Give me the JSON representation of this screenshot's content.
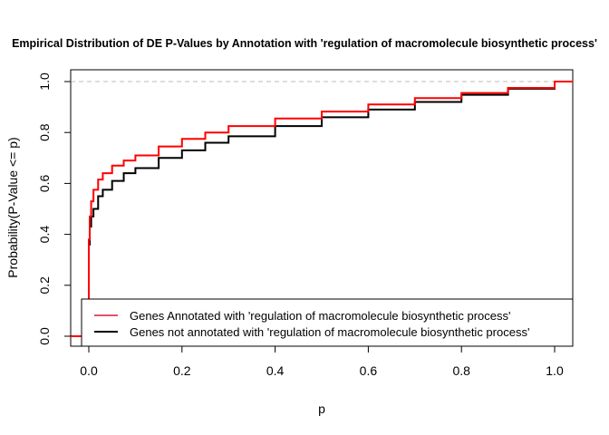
{
  "chart_data": {
    "type": "line",
    "title": "Empirical Distribution of DE P-Values by Annotation with 'regulation of macromolecule biosynthetic process'",
    "xlabel": "p",
    "ylabel": "Probability(P-Value <= p)",
    "xlim": [
      -0.04,
      1.04
    ],
    "ylim": [
      -0.04,
      1.04
    ],
    "xticks": [
      0.0,
      0.2,
      0.4,
      0.6,
      0.8,
      1.0
    ],
    "xtick_labels": [
      "0.0",
      "0.2",
      "0.4",
      "0.6",
      "0.8",
      "1.0"
    ],
    "yticks": [
      0.0,
      0.2,
      0.4,
      0.6,
      0.8,
      1.0
    ],
    "ytick_labels": [
      "0.0",
      "0.2",
      "0.4",
      "0.6",
      "0.8",
      "1.0"
    ],
    "reference_line": {
      "y": 1.0,
      "style": "dashed",
      "color": "#bbbbbb"
    },
    "legend_position": "bottom-right",
    "series": [
      {
        "name": "Genes Annotated with 'regulation of macromolecule biosynthetic process'",
        "color": "#ff0000",
        "x": [
          -0.04,
          0.0,
          0.0,
          0.002,
          0.005,
          0.01,
          0.02,
          0.03,
          0.05,
          0.075,
          0.1,
          0.15,
          0.2,
          0.25,
          0.3,
          0.4,
          0.5,
          0.6,
          0.7,
          0.8,
          0.9,
          1.0,
          1.04
        ],
        "y": [
          0.0,
          0.0,
          0.38,
          0.47,
          0.53,
          0.575,
          0.615,
          0.64,
          0.67,
          0.69,
          0.71,
          0.745,
          0.775,
          0.8,
          0.825,
          0.855,
          0.882,
          0.91,
          0.935,
          0.955,
          0.975,
          1.0,
          1.0
        ]
      },
      {
        "name": "Genes not annotated with 'regulation of macromolecule biosynthetic process'",
        "color": "#000000",
        "x": [
          -0.04,
          0.0,
          0.0,
          0.002,
          0.005,
          0.01,
          0.02,
          0.03,
          0.05,
          0.075,
          0.1,
          0.15,
          0.2,
          0.25,
          0.3,
          0.4,
          0.5,
          0.6,
          0.7,
          0.8,
          0.9,
          1.0,
          1.04
        ],
        "y": [
          0.0,
          0.0,
          0.36,
          0.43,
          0.47,
          0.5,
          0.55,
          0.575,
          0.61,
          0.64,
          0.66,
          0.7,
          0.73,
          0.76,
          0.785,
          0.825,
          0.86,
          0.89,
          0.92,
          0.948,
          0.972,
          1.0,
          1.0
        ]
      }
    ]
  }
}
